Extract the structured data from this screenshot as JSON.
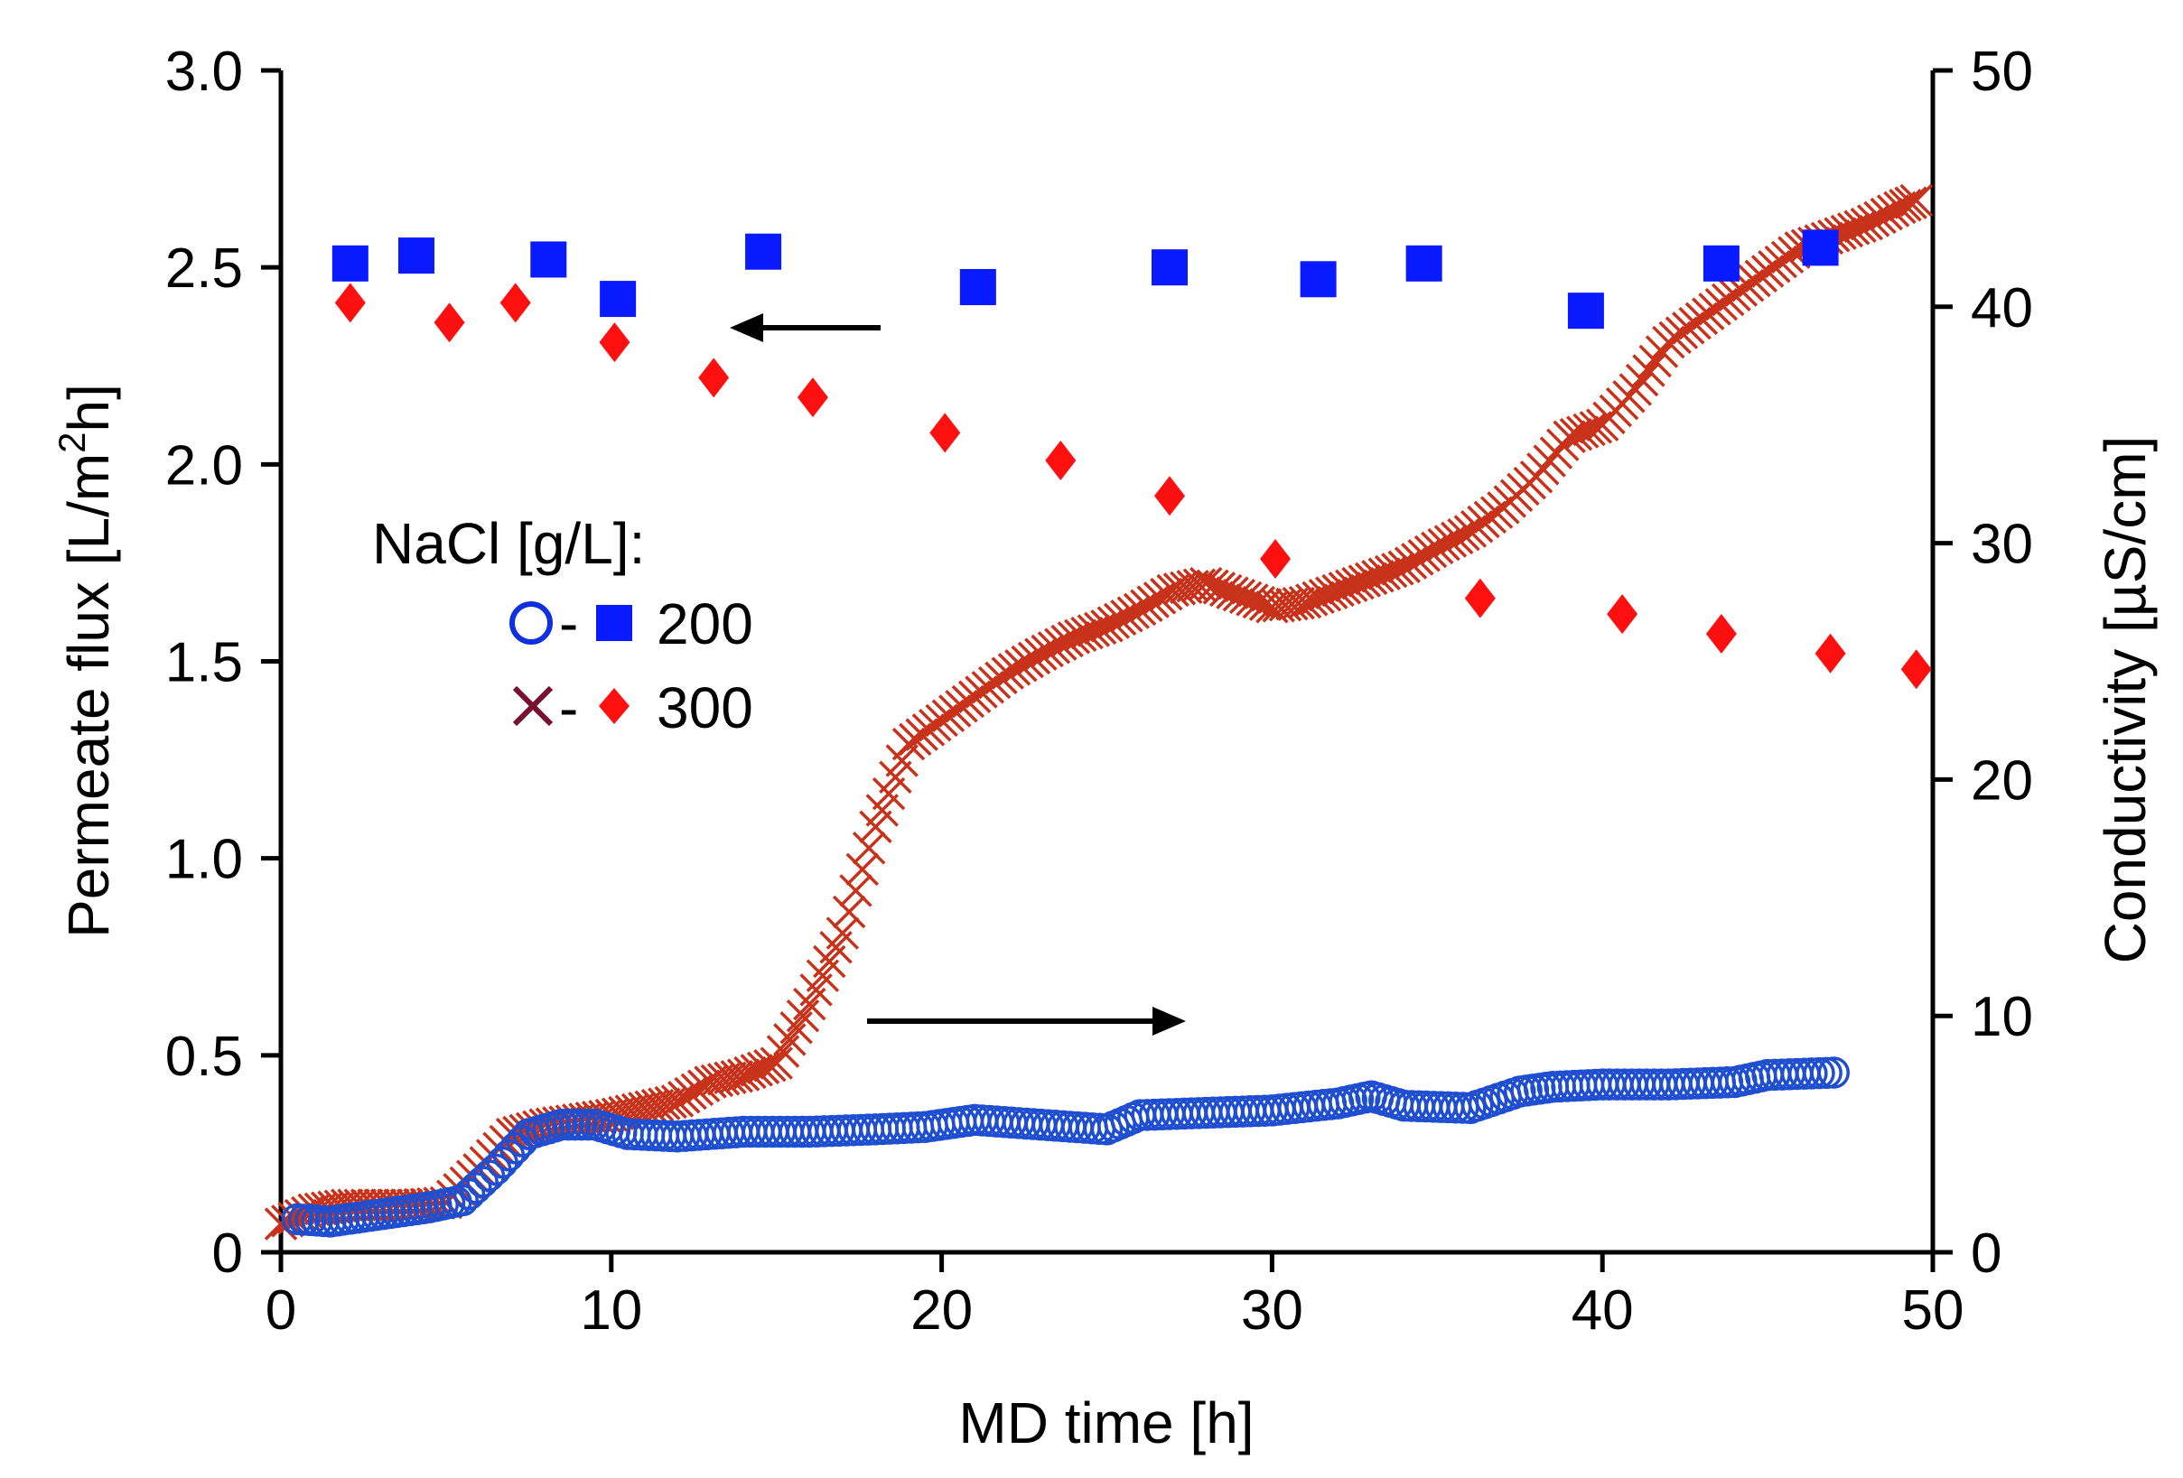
{
  "chart_data": {
    "type": "scatter",
    "title": "",
    "xlabel": "MD time [h]",
    "ylabel_left_main": "Permeate flux [L/m",
    "ylabel_left_sup": "2",
    "ylabel_left_tail": "h]",
    "ylabel_right": "Conductivity [µS/cm]",
    "xlim": [
      0,
      50
    ],
    "ylim_left": [
      0,
      3.0
    ],
    "ylim_right": [
      0,
      50
    ],
    "x_ticks": [
      "0",
      "10",
      "20",
      "30",
      "40",
      "50"
    ],
    "y_left_ticks": [
      "0",
      "0.5",
      "1.0",
      "1.5",
      "2.0",
      "2.5",
      "3.0"
    ],
    "y_right_ticks": [
      "0",
      "10",
      "20",
      "30",
      "40",
      "50"
    ],
    "grid": false,
    "legend": {
      "title": "NaCl [g/L]:",
      "dash": "-",
      "entries": [
        {
          "label": "200",
          "flux_marker": "blue-square",
          "cond_marker": "blue-open-circle"
        },
        {
          "label": "300",
          "flux_marker": "red-diamond",
          "cond_marker": "red-cross"
        }
      ]
    },
    "colors": {
      "flux_200": "#0a1aff",
      "flux_300": "#ff1010",
      "cond_200": "#1f4fd0",
      "cond_300": "#c8321a",
      "legend_cross": "#7a1030",
      "legend_circle": "#1030e0",
      "arrow": "#000000"
    },
    "series": [
      {
        "name": "Flux 200 g/L",
        "axis": "left",
        "marker": "square",
        "x": [
          2.1,
          4.1,
          8.1,
          10.2,
          14.6,
          21.1,
          26.9,
          31.4,
          34.6,
          39.5,
          43.6,
          46.6
        ],
        "y": [
          2.51,
          2.53,
          2.52,
          2.42,
          2.54,
          2.45,
          2.5,
          2.47,
          2.51,
          2.39,
          2.51,
          2.55
        ]
      },
      {
        "name": "Flux 300 g/L",
        "axis": "left",
        "marker": "diamond",
        "x": [
          2.1,
          5.1,
          7.1,
          10.1,
          13.1,
          16.1,
          20.1,
          23.6,
          26.9,
          30.1,
          36.3,
          40.6,
          43.6,
          46.9,
          49.5
        ],
        "y": [
          2.41,
          2.36,
          2.41,
          2.31,
          2.22,
          2.17,
          2.08,
          2.01,
          1.92,
          1.76,
          1.66,
          1.62,
          1.57,
          1.52,
          1.48
        ]
      },
      {
        "name": "Conductivity 200 g/L",
        "axis": "right",
        "marker": "open-circle",
        "x": [
          0.5,
          1.5,
          2.5,
          3.5,
          4.5,
          5.5,
          6.5,
          7.5,
          8.5,
          9.5,
          10.5,
          12,
          14,
          16,
          18,
          19.5,
          21,
          23,
          25,
          26,
          28,
          30,
          32,
          33,
          34,
          36,
          37.5,
          38.5,
          40,
          42,
          44,
          45,
          47
        ],
        "y": [
          1.4,
          1.3,
          1.5,
          1.7,
          1.9,
          2.2,
          3.5,
          5.0,
          5.4,
          5.4,
          5.0,
          4.9,
          5.1,
          5.1,
          5.2,
          5.3,
          5.6,
          5.4,
          5.2,
          5.8,
          5.9,
          6.0,
          6.3,
          6.6,
          6.2,
          6.1,
          6.8,
          7.0,
          7.1,
          7.1,
          7.2,
          7.5,
          7.6
        ]
      },
      {
        "name": "Conductivity 300 g/L",
        "axis": "right",
        "marker": "cross",
        "x": [
          0,
          1,
          2,
          3,
          4,
          5,
          6,
          7,
          8,
          9,
          10,
          11,
          12,
          13,
          14,
          15,
          16,
          17,
          18,
          19,
          20,
          21,
          22,
          23,
          24,
          25,
          26,
          27,
          28,
          29,
          30,
          31,
          32,
          33,
          34,
          35,
          36,
          37,
          38,
          39,
          40,
          41,
          42,
          43,
          44,
          45,
          46,
          47,
          48,
          49,
          49.5
        ],
        "y": [
          1.2,
          1.8,
          2.0,
          2.0,
          2.0,
          2.1,
          3.5,
          5.0,
          5.4,
          5.6,
          5.8,
          6.1,
          6.4,
          7.2,
          7.5,
          8.0,
          10.5,
          13.5,
          18.0,
          21.5,
          22.5,
          23.5,
          24.5,
          25.3,
          26.0,
          26.5,
          27.2,
          28.0,
          28.3,
          27.8,
          27.3,
          27.5,
          28.0,
          28.5,
          29.0,
          29.8,
          30.5,
          31.5,
          32.8,
          34.5,
          35.0,
          36.5,
          38.5,
          39.5,
          40.5,
          41.5,
          42.5,
          43.0,
          43.5,
          44.2,
          44.5
        ]
      }
    ]
  }
}
